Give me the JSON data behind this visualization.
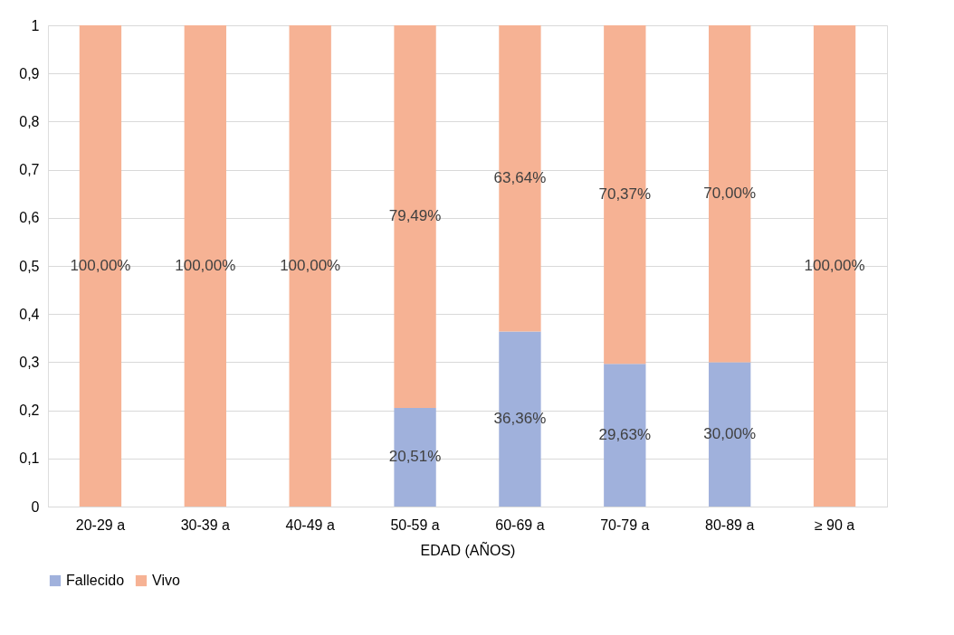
{
  "chart_data": {
    "type": "bar",
    "stacked": true,
    "xlabel": "EDAD (AÑOS)",
    "categories": [
      "20-29 a",
      "30-39 a",
      "40-49 a",
      "50-59 a",
      "60-69 a",
      "70-79 a",
      "80-89 a",
      "≥ 90 a"
    ],
    "series": [
      {
        "name": "Fallecido",
        "color": "#a0b1dc",
        "values": [
          0,
          0,
          0,
          0.2051,
          0.3636,
          0.2963,
          0.3,
          0
        ],
        "value_labels": [
          null,
          null,
          null,
          "20,51%",
          "36,36%",
          "29,63%",
          "30,00%",
          null
        ]
      },
      {
        "name": "Vivo",
        "color": "#f6b294",
        "values": [
          1,
          1,
          1,
          0.7949,
          0.6364,
          0.7037,
          0.7,
          1
        ],
        "value_labels": [
          "100,00%",
          "100,00%",
          "100,00%",
          "79,49%",
          "63,64%",
          "70,37%",
          "70,00%",
          "100,00%"
        ]
      }
    ],
    "ylim": [
      0,
      1
    ],
    "yticks": [
      0,
      {
        "value": 0.1,
        "label": "0,1"
      },
      {
        "value": 0.2,
        "label": "0,2"
      },
      {
        "value": 0.3,
        "label": "0,3"
      },
      {
        "value": 0.4,
        "label": "0,4"
      },
      {
        "value": 0.5,
        "label": "0,5"
      },
      {
        "value": 0.6,
        "label": "0,6"
      },
      {
        "value": 0.7,
        "label": "0,7"
      },
      {
        "value": 0.8,
        "label": "0,8"
      },
      {
        "value": 0.9,
        "label": "0,9"
      },
      1
    ],
    "grid": "y",
    "legend": "bottom"
  }
}
